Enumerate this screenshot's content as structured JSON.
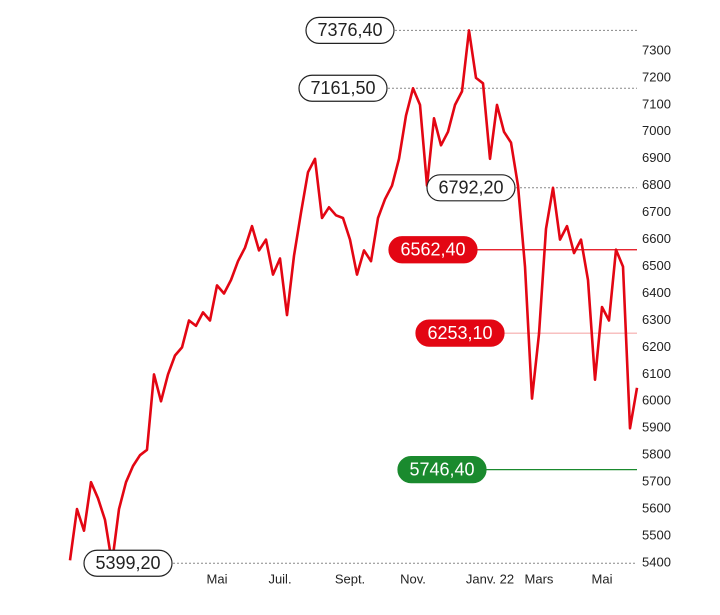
{
  "chart_data": {
    "type": "line",
    "categories": [
      null,
      null,
      null,
      null,
      null,
      null,
      null,
      null,
      null,
      null,
      null,
      null,
      null,
      null,
      null,
      null,
      null,
      null,
      null,
      null,
      null,
      "Mai",
      null,
      null,
      null,
      null,
      null,
      null,
      null,
      null,
      "Juil.",
      null,
      null,
      null,
      null,
      null,
      null,
      null,
      null,
      null,
      "Sept.",
      null,
      null,
      null,
      null,
      null,
      null,
      null,
      null,
      "Nov.",
      null,
      null,
      null,
      null,
      null,
      null,
      null,
      null,
      null,
      null,
      "Janv. 22",
      null,
      null,
      null,
      null,
      null,
      null,
      "Mars",
      null,
      null,
      null,
      null,
      null,
      null,
      null,
      null,
      "Mai",
      null,
      null,
      null,
      null,
      null
    ],
    "series": [
      {
        "color": "#e30613",
        "values": [
          5410,
          5600,
          5520,
          5700,
          5640,
          5560,
          5399.2,
          5600,
          5700,
          5760,
          5800,
          5820,
          6100,
          6000,
          6100,
          6170,
          6200,
          6300,
          6280,
          6330,
          6300,
          6430,
          6400,
          6450,
          6520,
          6570,
          6650,
          6560,
          6600,
          6470,
          6530,
          6320,
          6540,
          6700,
          6850,
          6900,
          6680,
          6720,
          6690,
          6680,
          6600,
          6470,
          6560,
          6520,
          6680,
          6750,
          6800,
          6900,
          7060,
          7161.5,
          7100,
          6800,
          7050,
          6950,
          7000,
          7100,
          7150,
          7376.4,
          7200,
          7180,
          6900,
          7100,
          7000,
          6960,
          6800,
          6500,
          6010,
          6250,
          6640,
          6792.2,
          6600,
          6650,
          6550,
          6600,
          6450,
          6080,
          6350,
          6300,
          6562.4,
          6500,
          5900,
          6050
        ]
      }
    ],
    "ylim": [
      5380,
      7400
    ],
    "yticks": [
      5400,
      5500,
      5600,
      5700,
      5800,
      5900,
      6000,
      6100,
      6200,
      6300,
      6400,
      6500,
      6600,
      6700,
      6800,
      6900,
      7000,
      7100,
      7200,
      7300
    ],
    "annotations": [
      {
        "value": 7376.4,
        "label": "7376,40",
        "color": "#222222",
        "filled": false
      },
      {
        "value": 7161.5,
        "label": "7161,50",
        "color": "#222222",
        "filled": false
      },
      {
        "value": 6792.2,
        "label": "6792,20",
        "color": "#222222",
        "filled": false
      },
      {
        "value": 6562.4,
        "label": "6562,40",
        "color": "#e30613",
        "filled": true
      },
      {
        "value": 6253.1,
        "label": "6253,10",
        "color": "#e30613",
        "filled": true
      },
      {
        "value": 5746.4,
        "label": "5746,40",
        "color": "#1a8a2e",
        "filled": true
      },
      {
        "value": 5399.2,
        "label": "5399,20",
        "color": "#222222",
        "filled": false
      }
    ]
  }
}
